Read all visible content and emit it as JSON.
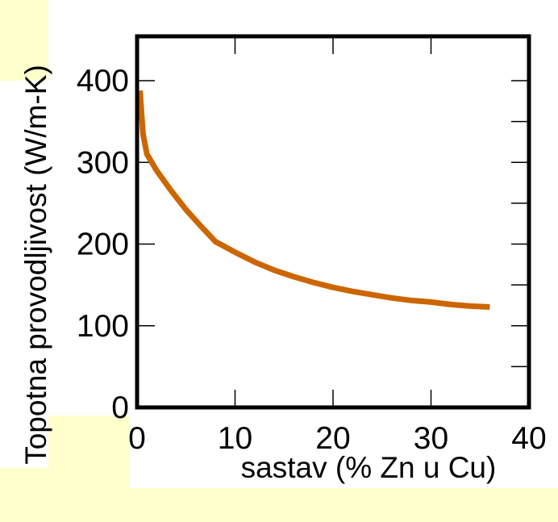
{
  "chart_data": {
    "type": "line",
    "title": "",
    "xlabel": "sastav (% Zn u Cu)",
    "ylabel": "Topotna provodljivost (W/m-K)",
    "xlim": [
      0,
      40
    ],
    "ylim": [
      0,
      400
    ],
    "xticks": [
      0,
      10,
      20,
      30,
      40
    ],
    "yticks": [
      0,
      100,
      200,
      300,
      400
    ],
    "grid": false,
    "series": [
      {
        "color": "#cc6600",
        "x": [
          0.3,
          0.6,
          1.0,
          2.0,
          3.5,
          5,
          6.5,
          8,
          10,
          12,
          14,
          16,
          18,
          20,
          22,
          24,
          26,
          28,
          30,
          32,
          34,
          36
        ],
        "y": [
          388,
          335,
          310,
          290,
          265,
          242,
          222,
          203,
          190,
          178,
          168,
          160,
          153,
          147,
          142,
          138,
          134,
          131,
          129,
          126,
          124,
          123
        ]
      }
    ]
  }
}
